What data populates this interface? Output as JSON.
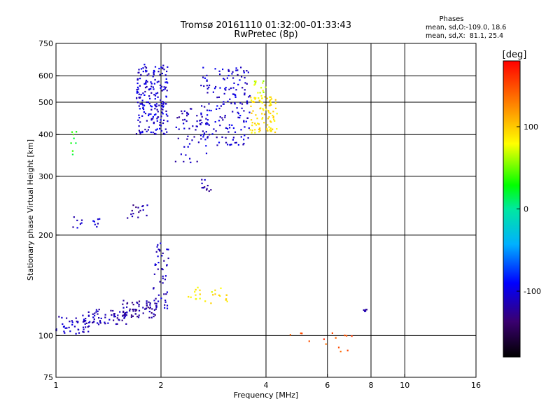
{
  "header": {
    "title_line1": "Tromsø 20161110 01:32:00–01:33:43",
    "title_line2": "RwPretec (8p)",
    "stats_title": "Phases",
    "stats_line1": "mean, sd,O:-109.0, 18.6",
    "stats_line2": "mean, sd,X:  81.1, 25.4"
  },
  "colorbar": {
    "label": "[deg]",
    "min": -180,
    "max": 180,
    "ticks": [
      {
        "value": 100,
        "label": "100"
      },
      {
        "value": 0,
        "label": "0"
      },
      {
        "value": -100,
        "label": "-100"
      }
    ]
  },
  "chart_data": {
    "type": "scatter",
    "xlabel": "Frequency [MHz]",
    "ylabel": "Stationary phase Virtual Height [km]",
    "x_scale": "log2",
    "y_scale": "log",
    "xlim": [
      1,
      16
    ],
    "ylim": [
      75,
      750
    ],
    "x_ticks": [
      1,
      2,
      4,
      6,
      8,
      10,
      16
    ],
    "y_ticks": [
      75,
      100,
      200,
      300,
      400,
      500,
      600,
      750
    ],
    "x_gridlines": [
      2,
      4,
      6,
      8,
      10
    ],
    "y_gridlines": [
      100,
      200,
      300,
      400,
      500,
      600
    ],
    "color_variable": "phase [deg]",
    "clusters": [
      {
        "x_range": [
          1.0,
          1.25
        ],
        "y_range": [
          100,
          115
        ],
        "phase": -110,
        "count": 45
      },
      {
        "x_range": [
          1.2,
          1.6
        ],
        "y_range": [
          108,
          120
        ],
        "phase": -115,
        "count": 55
      },
      {
        "x_range": [
          1.55,
          1.95
        ],
        "y_range": [
          113,
          128
        ],
        "phase": -120,
        "count": 70
      },
      {
        "x_range": [
          1.9,
          2.1
        ],
        "y_range": [
          120,
          190
        ],
        "phase": -112,
        "count": 45
      },
      {
        "x_range": [
          1.1,
          1.35
        ],
        "y_range": [
          210,
          228
        ],
        "phase": -110,
        "count": 14
      },
      {
        "x_range": [
          1.6,
          1.85
        ],
        "y_range": [
          225,
          250
        ],
        "phase": -120,
        "count": 16
      },
      {
        "x_range": [
          1.7,
          2.1
        ],
        "y_range": [
          400,
          650
        ],
        "phase": -105,
        "count": 200
      },
      {
        "x_range": [
          2.2,
          2.7
        ],
        "y_range": [
          330,
          480
        ],
        "phase": -112,
        "count": 50
      },
      {
        "x_range": [
          2.6,
          3.6
        ],
        "y_range": [
          370,
          640
        ],
        "phase": -105,
        "count": 170
      },
      {
        "x_range": [
          2.6,
          2.8
        ],
        "y_range": [
          270,
          300
        ],
        "phase": -118,
        "count": 12
      },
      {
        "x_range": [
          3.6,
          4.3
        ],
        "y_range": [
          405,
          520
        ],
        "phase": 90,
        "count": 90
      },
      {
        "x_range": [
          3.7,
          4.0
        ],
        "y_range": [
          520,
          580
        ],
        "phase": 70,
        "count": 14
      },
      {
        "x_range": [
          1.1,
          1.15
        ],
        "y_range": [
          340,
          410
        ],
        "phase": 30,
        "count": 8
      },
      {
        "x_range": [
          2.35,
          3.1
        ],
        "y_range": [
          125,
          140
        ],
        "phase": 85,
        "count": 25
      },
      {
        "x_range": [
          4.4,
          7.2
        ],
        "y_range": [
          88,
          102
        ],
        "phase": 150,
        "count": 14
      },
      {
        "x_range": [
          7.6,
          7.9
        ],
        "y_range": [
          118,
          120
        ],
        "phase": -115,
        "count": 6
      }
    ]
  }
}
